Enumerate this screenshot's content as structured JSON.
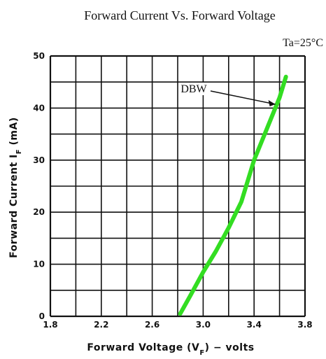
{
  "chart_data": {
    "type": "line",
    "title": "Forward Current Vs. Forward Voltage",
    "condition": "Ta=25°C",
    "xlabel": "Forward Voltage (VF) - volts",
    "ylabel": "Forward Current IF (mA)",
    "xlim": [
      1.8,
      3.8
    ],
    "ylim": [
      0,
      50
    ],
    "x_ticks": [
      "1.8",
      "2.2",
      "2.6",
      "3.0",
      "3.4",
      "3.8"
    ],
    "y_ticks": [
      "0",
      "10",
      "20",
      "30",
      "40",
      "50"
    ],
    "grid": true,
    "series": [
      {
        "name": "DBW",
        "color": "#33dd22",
        "x": [
          2.82,
          2.9,
          3.0,
          3.1,
          3.2,
          3.3,
          3.4,
          3.5,
          3.6,
          3.65
        ],
        "y": [
          0.5,
          4,
          8.5,
          12.5,
          17,
          22,
          30,
          36,
          42,
          46
        ]
      }
    ],
    "annotations": [
      {
        "text": "DBW",
        "series": "DBW",
        "points_to": [
          3.6,
          41
        ]
      }
    ]
  }
}
